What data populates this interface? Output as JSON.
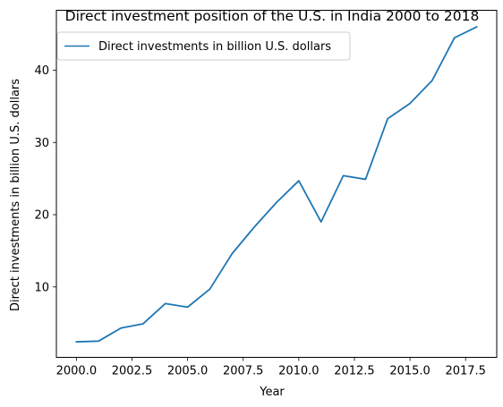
{
  "chart_data": {
    "type": "line",
    "title": "Direct investment position of the U.S. in India 2000 to 2018",
    "xlabel": "Year",
    "ylabel": "Direct investments in billion U.S. dollars",
    "xlim": [
      1999.1,
      2018.9
    ],
    "ylim": [
      0.25,
      48.3
    ],
    "xticks": [
      2000.0,
      2002.5,
      2005.0,
      2007.5,
      2010.0,
      2012.5,
      2015.0,
      2017.5
    ],
    "xtick_labels": [
      "2000.0",
      "2002.5",
      "2005.0",
      "2007.5",
      "2010.0",
      "2012.5",
      "2015.0",
      "2017.5"
    ],
    "yticks": [
      10,
      20,
      30,
      40
    ],
    "ytick_labels": [
      "10",
      "20",
      "30",
      "40"
    ],
    "grid": false,
    "legend_position": "top-left",
    "line_color": "#1f77b4",
    "series": [
      {
        "name": "Direct investments in billion U.S. dollars",
        "x": [
          2000,
          2001,
          2002,
          2003,
          2004,
          2005,
          2006,
          2007,
          2008,
          2009,
          2010,
          2011,
          2012,
          2013,
          2014,
          2015,
          2016,
          2017,
          2018
        ],
        "y": [
          2.4,
          2.5,
          4.3,
          4.9,
          7.7,
          7.2,
          9.7,
          14.6,
          18.3,
          21.7,
          24.7,
          19.0,
          25.4,
          24.9,
          33.3,
          35.4,
          38.6,
          44.5,
          46.0
        ]
      }
    ]
  }
}
